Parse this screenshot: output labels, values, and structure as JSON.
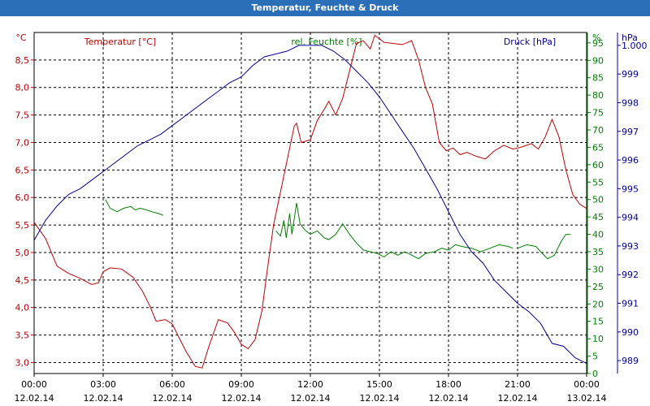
{
  "chart_data": {
    "type": "line",
    "title": "Temperatur, Feuchte & Druck",
    "colors": {
      "temperature": "#c00000",
      "humidity": "#008000",
      "pressure": "#000099",
      "grid": "#000000",
      "titlebar": "#2a6fb8"
    },
    "x_axis": {
      "unit": "hours",
      "range": [
        0,
        24
      ],
      "tick_labels": [
        {
          "time": "00:00",
          "date": "12.02.14"
        },
        {
          "time": "03:00",
          "date": "12.02.14"
        },
        {
          "time": "06:00",
          "date": "12.02.14"
        },
        {
          "time": "09:00",
          "date": "12.02.14"
        },
        {
          "time": "12:00",
          "date": "12.02.14"
        },
        {
          "time": "15:00",
          "date": "12.02.14"
        },
        {
          "time": "18:00",
          "date": "12.02.14"
        },
        {
          "time": "21:00",
          "date": "12.02.14"
        },
        {
          "time": "00:00",
          "date": "13.02.14"
        }
      ]
    },
    "axes": {
      "temperature": {
        "label": "Temperatur [°C]",
        "unit": "°C",
        "range": [
          2.8,
          9.0
        ],
        "ticks": [
          3.0,
          3.5,
          4.0,
          4.5,
          5.0,
          5.5,
          6.0,
          6.5,
          7.0,
          7.5,
          8.0,
          8.5
        ],
        "tick_labels": [
          "3,0",
          "3,5",
          "4,0",
          "4,5",
          "5,0",
          "5,5",
          "6,0",
          "6,5",
          "7,0",
          "7,5",
          "8,0",
          "8,5"
        ]
      },
      "humidity": {
        "label": "rel. Feuchte [%]",
        "unit": "%",
        "range": [
          0,
          98
        ],
        "ticks": [
          0,
          5,
          10,
          15,
          20,
          25,
          30,
          35,
          40,
          45,
          50,
          55,
          60,
          65,
          70,
          75,
          80,
          85,
          90,
          95
        ],
        "tick_labels": [
          "0",
          "5",
          "10",
          "15",
          "20",
          "25",
          "30",
          "35",
          "40",
          "45",
          "50",
          "55",
          "60",
          "65",
          "70",
          "75",
          "80",
          "85",
          "90",
          "95"
        ]
      },
      "pressure": {
        "label": "Druck [hPa]",
        "unit": "hPa",
        "range": [
          988.55,
          1000.45
        ],
        "ticks": [
          989,
          990,
          991,
          992,
          993,
          994,
          995,
          996,
          997,
          998,
          999,
          1000
        ],
        "tick_labels": [
          "989",
          "990",
          "991",
          "992",
          "993",
          "994",
          "995",
          "996",
          "997",
          "998",
          "999",
          "1.000"
        ]
      }
    },
    "series": [
      {
        "name": "Temperatur",
        "axis": "temperature",
        "segments": [
          [
            [
              0.0,
              5.55
            ],
            [
              0.5,
              5.25
            ],
            [
              1.0,
              4.75
            ],
            [
              1.5,
              4.62
            ],
            [
              2.0,
              4.53
            ],
            [
              2.5,
              4.42
            ],
            [
              2.8,
              4.45
            ],
            [
              3.0,
              4.65
            ],
            [
              3.3,
              4.72
            ],
            [
              3.8,
              4.7
            ],
            [
              4.3,
              4.55
            ],
            [
              4.7,
              4.3
            ],
            [
              5.0,
              4.05
            ],
            [
              5.3,
              3.75
            ],
            [
              5.7,
              3.78
            ],
            [
              6.0,
              3.7
            ],
            [
              6.3,
              3.45
            ],
            [
              6.6,
              3.2
            ],
            [
              7.0,
              2.93
            ],
            [
              7.3,
              2.9
            ],
            [
              7.6,
              3.3
            ],
            [
              8.0,
              3.78
            ],
            [
              8.4,
              3.72
            ],
            [
              8.7,
              3.55
            ],
            [
              9.0,
              3.33
            ],
            [
              9.3,
              3.25
            ],
            [
              9.6,
              3.42
            ],
            [
              9.9,
              3.95
            ],
            [
              10.1,
              4.6
            ],
            [
              10.4,
              5.5
            ],
            [
              10.7,
              6.1
            ],
            [
              11.0,
              6.7
            ],
            [
              11.3,
              7.3
            ],
            [
              11.4,
              7.35
            ],
            [
              11.6,
              7.0
            ],
            [
              12.0,
              7.05
            ],
            [
              12.3,
              7.4
            ],
            [
              12.6,
              7.6
            ],
            [
              12.8,
              7.75
            ],
            [
              13.1,
              7.5
            ],
            [
              13.4,
              7.8
            ],
            [
              13.7,
              8.3
            ],
            [
              14.0,
              8.8
            ],
            [
              14.3,
              8.85
            ],
            [
              14.6,
              8.7
            ],
            [
              14.8,
              8.95
            ],
            [
              15.2,
              8.82
            ],
            [
              15.6,
              8.8
            ],
            [
              16.0,
              8.78
            ],
            [
              16.4,
              8.85
            ],
            [
              16.7,
              8.5
            ],
            [
              17.0,
              8.0
            ],
            [
              17.3,
              7.7
            ],
            [
              17.6,
              7.0
            ],
            [
              17.9,
              6.85
            ],
            [
              18.2,
              6.9
            ],
            [
              18.5,
              6.78
            ],
            [
              18.8,
              6.82
            ],
            [
              19.2,
              6.75
            ],
            [
              19.6,
              6.7
            ],
            [
              20.0,
              6.85
            ],
            [
              20.4,
              6.95
            ],
            [
              20.8,
              6.88
            ],
            [
              21.2,
              6.92
            ],
            [
              21.6,
              6.98
            ],
            [
              21.9,
              6.88
            ],
            [
              22.2,
              7.1
            ],
            [
              22.5,
              7.42
            ],
            [
              22.8,
              7.1
            ],
            [
              23.1,
              6.5
            ],
            [
              23.4,
              6.05
            ],
            [
              23.7,
              5.88
            ],
            [
              24.0,
              5.8
            ]
          ]
        ]
      },
      {
        "name": "rel. Feuchte",
        "axis": "humidity",
        "segments": [
          [
            [
              3.1,
              50.0
            ],
            [
              3.3,
              47.5
            ],
            [
              3.6,
              46.5
            ],
            [
              3.9,
              47.5
            ],
            [
              4.2,
              48.0
            ],
            [
              4.4,
              47.0
            ],
            [
              4.6,
              47.5
            ],
            [
              4.9,
              47.0
            ],
            [
              5.1,
              46.5
            ],
            [
              5.4,
              46.0
            ],
            [
              5.6,
              45.5
            ]
          ],
          [
            [
              10.5,
              41.0
            ],
            [
              10.7,
              39.5
            ],
            [
              10.85,
              44.0
            ],
            [
              10.95,
              39.0
            ],
            [
              11.1,
              46.0
            ],
            [
              11.2,
              40.0
            ],
            [
              11.4,
              49.0
            ],
            [
              11.55,
              43.0
            ],
            [
              11.8,
              41.0
            ],
            [
              12.0,
              40.0
            ],
            [
              12.3,
              41.0
            ],
            [
              12.6,
              39.0
            ],
            [
              12.8,
              38.5
            ],
            [
              13.1,
              40.0
            ],
            [
              13.4,
              43.0
            ],
            [
              13.7,
              40.0
            ],
            [
              14.0,
              37.5
            ],
            [
              14.3,
              35.5
            ],
            [
              14.6,
              35.0
            ],
            [
              14.9,
              34.5
            ],
            [
              15.2,
              33.5
            ],
            [
              15.5,
              35.0
            ],
            [
              15.8,
              34.0
            ],
            [
              16.1,
              35.0
            ],
            [
              16.4,
              34.0
            ],
            [
              16.7,
              33.0
            ],
            [
              17.0,
              34.5
            ],
            [
              17.4,
              35.0
            ],
            [
              17.7,
              36.0
            ],
            [
              18.0,
              35.5
            ],
            [
              18.3,
              37.0
            ],
            [
              18.6,
              36.5
            ],
            [
              19.0,
              36.0
            ],
            [
              19.4,
              35.0
            ],
            [
              19.8,
              36.0
            ],
            [
              20.2,
              37.0
            ],
            [
              20.6,
              36.5
            ],
            [
              20.8,
              36.0
            ]
          ],
          [
            [
              21.0,
              36.0
            ],
            [
              21.4,
              37.0
            ],
            [
              21.8,
              36.5
            ],
            [
              22.0,
              35.0
            ],
            [
              22.3,
              33.0
            ],
            [
              22.6,
              34.0
            ],
            [
              22.9,
              38.0
            ],
            [
              23.1,
              40.0
            ],
            [
              23.3,
              40.0
            ]
          ]
        ]
      },
      {
        "name": "Druck",
        "axis": "pressure",
        "segments": [
          [
            [
              0.0,
              993.2
            ],
            [
              0.5,
              993.9
            ],
            [
              1.0,
              994.4
            ],
            [
              1.5,
              994.8
            ],
            [
              2.0,
              995.0
            ],
            [
              2.5,
              995.3
            ],
            [
              3.0,
              995.6
            ],
            [
              3.5,
              995.9
            ],
            [
              4.0,
              996.2
            ],
            [
              4.5,
              996.5
            ],
            [
              5.0,
              996.7
            ],
            [
              5.5,
              996.9
            ],
            [
              6.0,
              997.2
            ],
            [
              6.5,
              997.5
            ],
            [
              7.0,
              997.8
            ],
            [
              7.5,
              998.1
            ],
            [
              8.0,
              998.4
            ],
            [
              8.5,
              998.7
            ],
            [
              9.0,
              998.9
            ],
            [
              9.5,
              999.3
            ],
            [
              10.0,
              999.6
            ],
            [
              10.5,
              999.7
            ],
            [
              11.0,
              999.8
            ],
            [
              11.5,
              1000.0
            ],
            [
              12.0,
              1000.0
            ],
            [
              12.5,
              1000.0
            ],
            [
              13.0,
              999.8
            ],
            [
              13.5,
              999.5
            ],
            [
              14.0,
              999.1
            ],
            [
              14.5,
              998.7
            ],
            [
              15.0,
              998.2
            ],
            [
              15.5,
              997.6
            ],
            [
              16.0,
              997.0
            ],
            [
              16.5,
              996.4
            ],
            [
              17.0,
              995.7
            ],
            [
              17.5,
              995.0
            ],
            [
              18.0,
              994.2
            ],
            [
              18.5,
              993.4
            ],
            [
              19.0,
              992.8
            ],
            [
              19.5,
              992.4
            ],
            [
              20.0,
              991.8
            ],
            [
              20.5,
              991.4
            ],
            [
              21.0,
              991.0
            ],
            [
              21.5,
              990.7
            ],
            [
              22.0,
              990.3
            ],
            [
              22.5,
              989.6
            ],
            [
              23.0,
              989.5
            ],
            [
              23.5,
              989.1
            ],
            [
              24.0,
              988.9
            ]
          ]
        ]
      }
    ],
    "grid": true
  }
}
